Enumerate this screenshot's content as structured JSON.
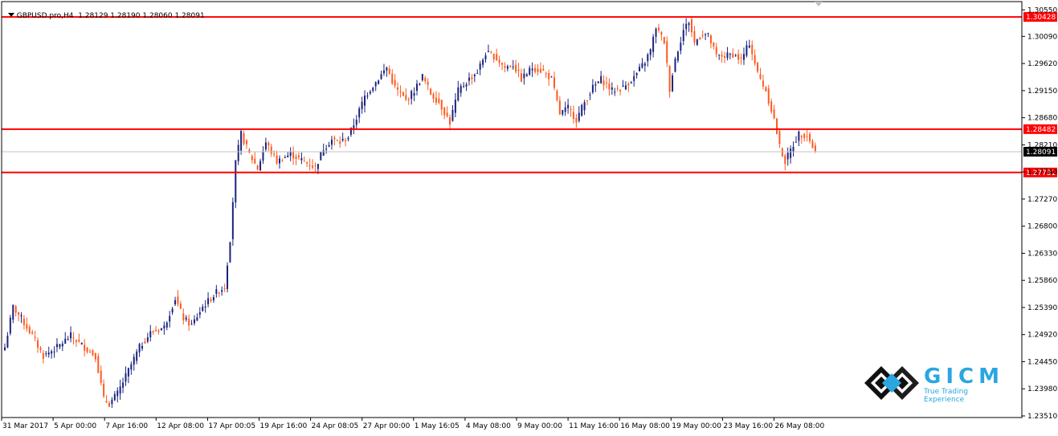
{
  "header": {
    "symbol": "GBPUSD.pro,H4",
    "ohlc": "1.28129 1.28190 1.28060 1.28091"
  },
  "logo": {
    "word": "GICM",
    "tagline": "True Trading Experience"
  },
  "colors": {
    "bull": "#1a237e",
    "bear": "#ff5a1f",
    "level": "#ff0000",
    "current": "#c0c0c0"
  },
  "chart_data": {
    "type": "candlestick",
    "title": "",
    "xlabel": "",
    "ylabel": "",
    "ylim": [
      1.2351,
      1.3061
    ],
    "y_ticks": [
      "1.30550",
      "1.30090",
      "1.29620",
      "1.29150",
      "1.28680",
      "1.28210",
      "1.27740",
      "1.27270",
      "1.26800",
      "1.26330",
      "1.25860",
      "1.25390",
      "1.24920",
      "1.24450",
      "1.23980",
      "1.23510"
    ],
    "x_ticks": [
      "31 Mar 2017",
      "5 Apr 00:00",
      "7 Apr 16:00",
      "12 Apr 08:00",
      "17 Apr 00:05",
      "19 Apr 16:00",
      "24 Apr 08:05",
      "27 Apr 00:00",
      "1 May 16:05",
      "4 May 08:00",
      "9 May 00:00",
      "11 May 16:00",
      "16 May 08:00",
      "19 May 00:00",
      "23 May 16:00",
      "26 May 08:00"
    ],
    "levels": [
      {
        "label": "1.30428",
        "value": 1.30428,
        "kind": "resistance"
      },
      {
        "label": "1.28482",
        "value": 1.28482,
        "kind": "resistance"
      },
      {
        "label": "1.27731",
        "value": 1.27731,
        "kind": "support"
      }
    ],
    "current": {
      "label": "1.28091",
      "value": 1.28091
    },
    "anchors": [
      [
        0,
        1.247
      ],
      [
        3,
        1.254
      ],
      [
        6,
        1.252
      ],
      [
        10,
        1.249
      ],
      [
        14,
        1.2455
      ],
      [
        19,
        1.247
      ],
      [
        24,
        1.249
      ],
      [
        29,
        1.247
      ],
      [
        33,
        1.2455
      ],
      [
        36,
        1.238
      ],
      [
        38,
        1.2372
      ],
      [
        41,
        1.239
      ],
      [
        44,
        1.242
      ],
      [
        49,
        1.247
      ],
      [
        53,
        1.2495
      ],
      [
        58,
        1.2505
      ],
      [
        62,
        1.2555
      ],
      [
        65,
        1.252
      ],
      [
        68,
        1.2508
      ],
      [
        72,
        1.254
      ],
      [
        77,
        1.2565
      ],
      [
        80,
        1.2575
      ],
      [
        82,
        1.2658
      ],
      [
        84,
        1.279
      ],
      [
        86,
        1.284
      ],
      [
        89,
        1.2805
      ],
      [
        92,
        1.278
      ],
      [
        95,
        1.2825
      ],
      [
        99,
        1.2792
      ],
      [
        104,
        1.2805
      ],
      [
        109,
        1.2792
      ],
      [
        113,
        1.2782
      ],
      [
        116,
        1.2815
      ],
      [
        119,
        1.283
      ],
      [
        122,
        1.2825
      ],
      [
        125,
        1.2835
      ],
      [
        128,
        1.2868
      ],
      [
        131,
        1.2905
      ],
      [
        135,
        1.293
      ],
      [
        139,
        1.2955
      ],
      [
        142,
        1.292
      ],
      [
        146,
        1.2898
      ],
      [
        149,
        1.2915
      ],
      [
        152,
        1.294
      ],
      [
        155,
        1.291
      ],
      [
        158,
        1.2895
      ],
      [
        162,
        1.286
      ],
      [
        165,
        1.2915
      ],
      [
        169,
        1.2935
      ],
      [
        172,
        1.2948
      ],
      [
        175,
        1.298
      ],
      [
        178,
        1.2975
      ],
      [
        182,
        1.2955
      ],
      [
        185,
        1.296
      ],
      [
        188,
        1.2935
      ],
      [
        192,
        1.2955
      ],
      [
        196,
        1.2948
      ],
      [
        199,
        1.2935
      ],
      [
        202,
        1.2875
      ],
      [
        205,
        1.2885
      ],
      [
        208,
        1.2865
      ],
      [
        211,
        1.2895
      ],
      [
        214,
        1.292
      ],
      [
        217,
        1.2935
      ],
      [
        221,
        1.2915
      ],
      [
        225,
        1.292
      ],
      [
        229,
        1.2938
      ],
      [
        233,
        1.2965
      ],
      [
        235,
        1.2985
      ],
      [
        237,
        1.3025
      ],
      [
        240,
        1.3
      ],
      [
        242,
        1.2918
      ],
      [
        244,
        1.297
      ],
      [
        247,
        1.302
      ],
      [
        249,
        1.3035
      ],
      [
        251,
        1.2998
      ],
      [
        254,
        1.3015
      ],
      [
        256,
        1.301
      ],
      [
        259,
        1.2975
      ],
      [
        262,
        1.2975
      ],
      [
        265,
        1.2978
      ],
      [
        268,
        1.2968
      ],
      [
        271,
        1.2998
      ],
      [
        274,
        1.2945
      ],
      [
        277,
        1.2915
      ],
      [
        280,
        1.2865
      ],
      [
        282,
        1.2818
      ],
      [
        284,
        1.2792
      ],
      [
        286,
        1.2812
      ],
      [
        289,
        1.284
      ],
      [
        292,
        1.2838
      ],
      [
        295,
        1.2808
      ]
    ]
  }
}
